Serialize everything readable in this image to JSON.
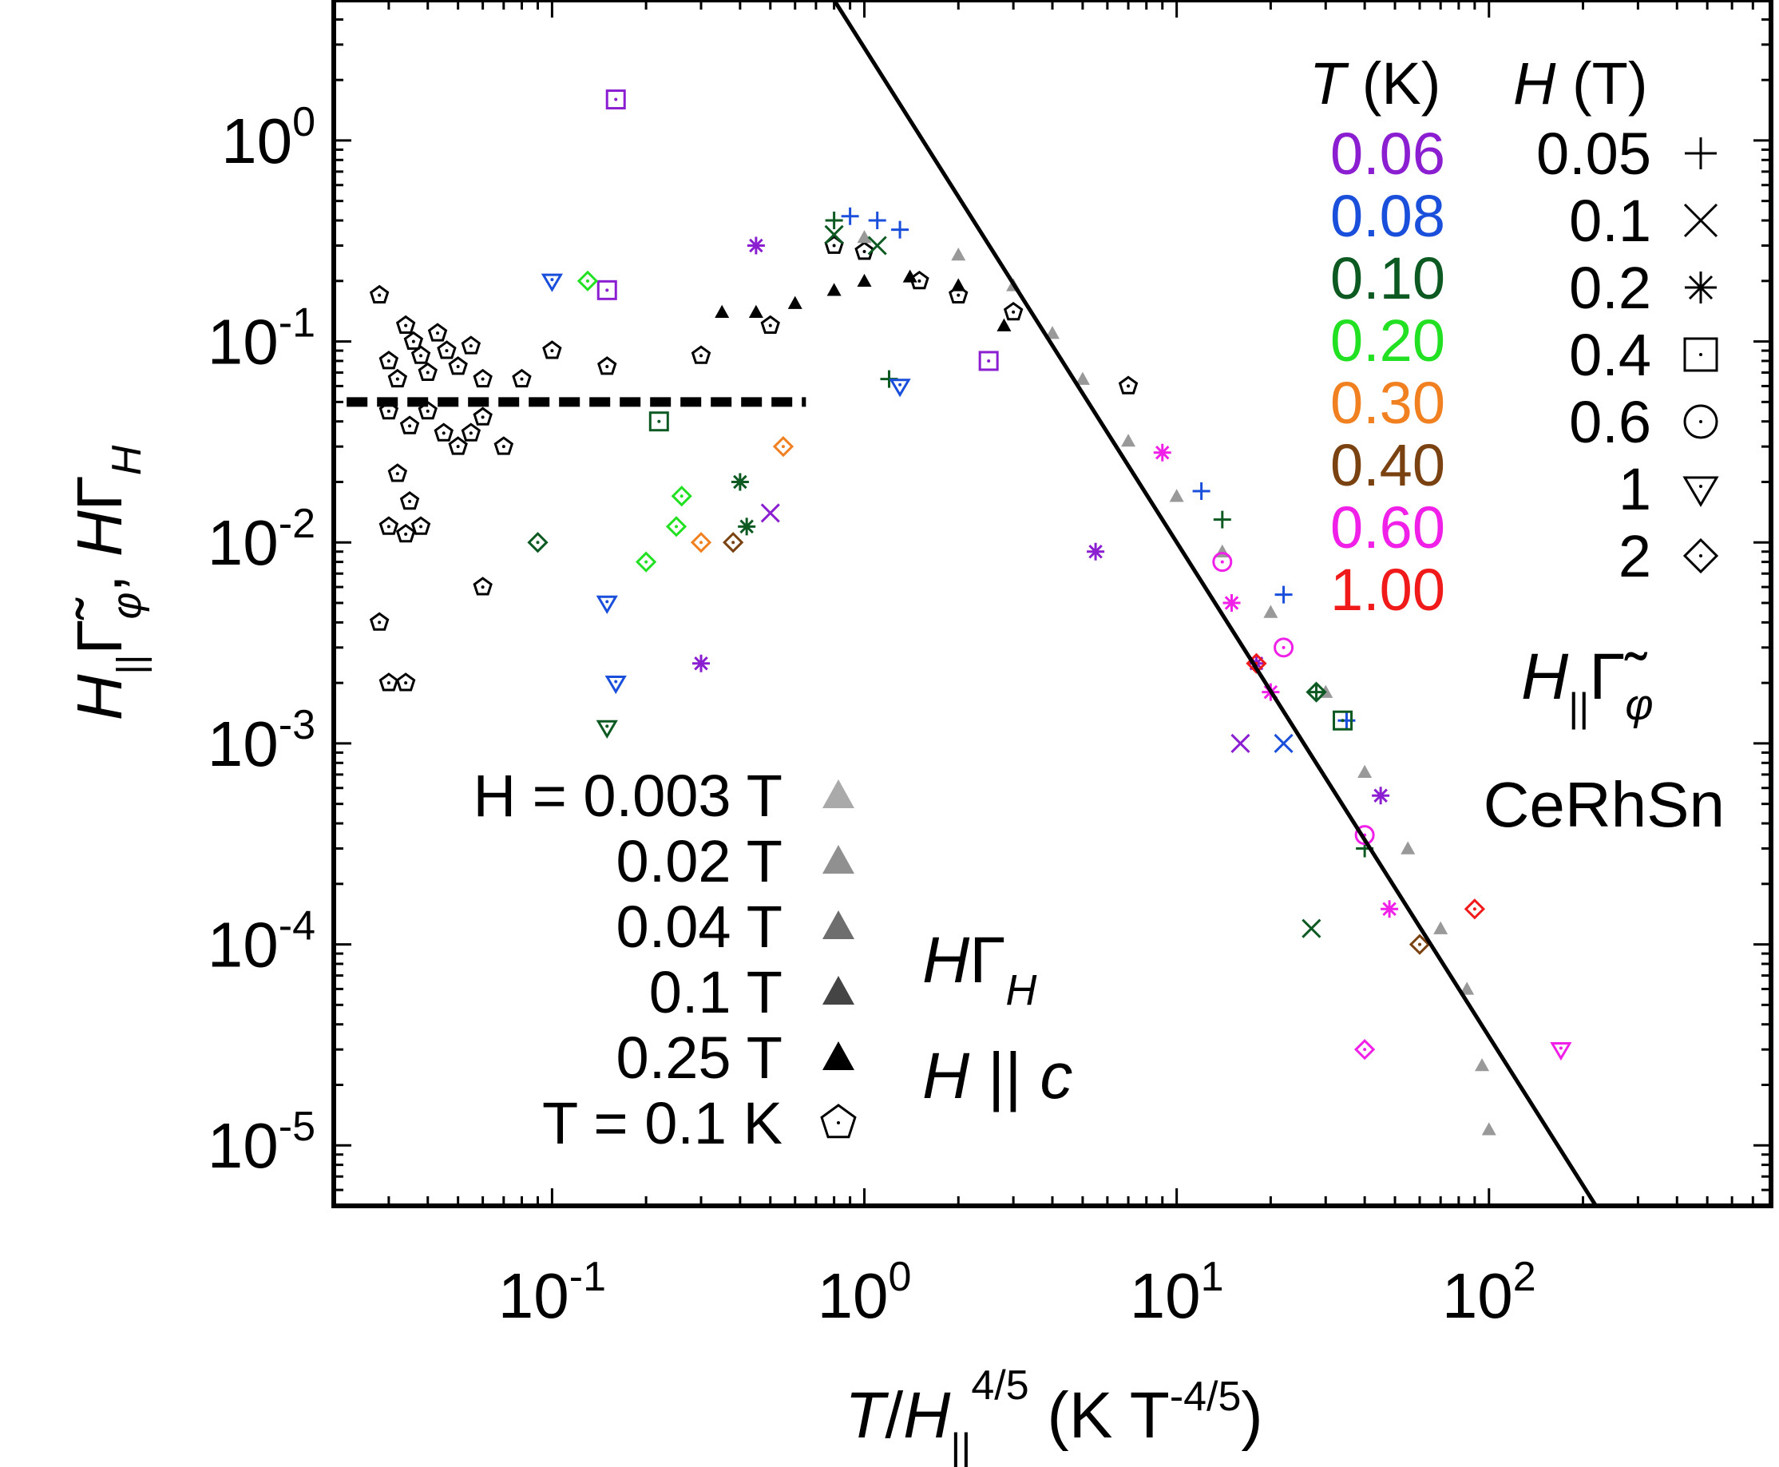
{
  "chart_data": {
    "type": "scatter",
    "x_scale": "log",
    "y_scale": "log",
    "xlim": [
      0.02,
      800
    ],
    "ylim": [
      5e-06,
      5
    ],
    "grid": false,
    "x_ticks": [
      {
        "value": 0.1,
        "base": "10",
        "exp": "-1"
      },
      {
        "value": 1,
        "base": "10",
        "exp": "0"
      },
      {
        "value": 10,
        "base": "10",
        "exp": "1"
      },
      {
        "value": 100,
        "base": "10",
        "exp": "2"
      }
    ],
    "y_ticks": [
      {
        "value": 1,
        "base": "10",
        "exp": "0"
      },
      {
        "value": 0.1,
        "base": "10",
        "exp": "-1"
      },
      {
        "value": 0.01,
        "base": "10",
        "exp": "-2"
      },
      {
        "value": 0.001,
        "base": "10",
        "exp": "-3"
      },
      {
        "value": 0.0001,
        "base": "10",
        "exp": "-4"
      },
      {
        "value": 1e-05,
        "base": "10",
        "exp": "-5"
      }
    ],
    "xlabel": "T/H||^4/5 (K T^-4/5)",
    "ylabel": "H|| Γ̃φ , HΓH",
    "annotations": {
      "material": "CeRhSn",
      "gamma_phi_label": "H||Γ̃φ",
      "gamma_h_label": "HΓH",
      "field_direction": "H || c"
    },
    "legend_T": {
      "header": "T (K)",
      "entries": [
        {
          "label": "0.06",
          "color": "#8a1ed0"
        },
        {
          "label": "0.08",
          "color": "#1a4fdc"
        },
        {
          "label": "0.10",
          "color": "#0c5a22"
        },
        {
          "label": "0.20",
          "color": "#22e022"
        },
        {
          "label": "0.30",
          "color": "#f08020"
        },
        {
          "label": "0.40",
          "color": "#7a4210"
        },
        {
          "label": "0.60",
          "color": "#f020e8"
        },
        {
          "label": "1.00",
          "color": "#f01a1a"
        }
      ]
    },
    "legend_H": {
      "header": "H (T)",
      "entries": [
        {
          "label": "0.05",
          "marker": "plus"
        },
        {
          "label": "0.1",
          "marker": "cross"
        },
        {
          "label": "0.2",
          "marker": "asterisk"
        },
        {
          "label": "0.4",
          "marker": "square"
        },
        {
          "label": "0.6",
          "marker": "circle"
        },
        {
          "label": "1",
          "marker": "triangle-down"
        },
        {
          "label": "2",
          "marker": "diamond"
        }
      ]
    },
    "legend_gammaH": {
      "entries": [
        {
          "label": "H = 0.003 T",
          "marker": "triangle-filled",
          "color": "#aaaaaa"
        },
        {
          "label": "0.02 T",
          "marker": "triangle-filled",
          "color": "#909090"
        },
        {
          "label": "0.04 T",
          "marker": "triangle-filled",
          "color": "#6e6e6e"
        },
        {
          "label": "0.1 T",
          "marker": "triangle-filled",
          "color": "#444444"
        },
        {
          "label": "0.25 T",
          "marker": "triangle-filled",
          "color": "#000000"
        },
        {
          "label": "T = 0.1 K",
          "marker": "pentagon",
          "color": "#000000"
        }
      ]
    },
    "reference_lines": [
      {
        "name": "power-law",
        "style": "solid",
        "points": [
          [
            0.8,
            5
          ],
          [
            220,
            5e-06
          ]
        ]
      },
      {
        "name": "plateau",
        "style": "dashed",
        "y": 0.05,
        "x_range": [
          0.022,
          0.65
        ]
      }
    ],
    "series": [
      {
        "marker": "pentagon",
        "color": "#000000",
        "points": [
          [
            0.028,
            0.17
          ],
          [
            0.03,
            0.08
          ],
          [
            0.032,
            0.065
          ],
          [
            0.034,
            0.12
          ],
          [
            0.036,
            0.1
          ],
          [
            0.038,
            0.085
          ],
          [
            0.04,
            0.07
          ],
          [
            0.043,
            0.11
          ],
          [
            0.046,
            0.09
          ],
          [
            0.05,
            0.075
          ],
          [
            0.055,
            0.095
          ],
          [
            0.06,
            0.065
          ],
          [
            0.03,
            0.045
          ],
          [
            0.035,
            0.038
          ],
          [
            0.04,
            0.045
          ],
          [
            0.045,
            0.035
          ],
          [
            0.05,
            0.03
          ],
          [
            0.055,
            0.035
          ],
          [
            0.06,
            0.042
          ],
          [
            0.032,
            0.022
          ],
          [
            0.035,
            0.016
          ],
          [
            0.03,
            0.012
          ],
          [
            0.034,
            0.011
          ],
          [
            0.038,
            0.012
          ],
          [
            0.06,
            0.006
          ],
          [
            0.028,
            0.004
          ],
          [
            0.03,
            0.002
          ],
          [
            0.034,
            0.002
          ],
          [
            0.07,
            0.03
          ],
          [
            0.08,
            0.065
          ],
          [
            0.1,
            0.09
          ],
          [
            0.15,
            0.075
          ],
          [
            0.3,
            0.085
          ],
          [
            0.5,
            0.12
          ],
          [
            0.8,
            0.3
          ],
          [
            1.0,
            0.28
          ],
          [
            1.5,
            0.2
          ],
          [
            2.0,
            0.17
          ],
          [
            3.0,
            0.14
          ],
          [
            7.0,
            0.06
          ]
        ]
      },
      {
        "marker": "triangle-filled",
        "color": "#999999",
        "points": [
          [
            1,
            0.33
          ],
          [
            2,
            0.27
          ],
          [
            3,
            0.19
          ],
          [
            4,
            0.11
          ],
          [
            5,
            0.065
          ],
          [
            7,
            0.032
          ],
          [
            10,
            0.017
          ],
          [
            14,
            0.009
          ],
          [
            20,
            0.0045
          ],
          [
            30,
            0.0018
          ],
          [
            40,
            0.00072
          ],
          [
            55,
            0.0003
          ],
          [
            70,
            0.00012
          ],
          [
            85,
            6e-05
          ],
          [
            95,
            2.5e-05
          ],
          [
            100,
            1.2e-05
          ]
        ]
      },
      {
        "marker": "triangle-filled",
        "color": "#000000",
        "points": [
          [
            0.35,
            0.14
          ],
          [
            0.45,
            0.14
          ],
          [
            0.6,
            0.155
          ],
          [
            0.8,
            0.18
          ],
          [
            1.0,
            0.2
          ],
          [
            1.4,
            0.21
          ],
          [
            2.0,
            0.19
          ],
          [
            2.8,
            0.12
          ]
        ]
      },
      {
        "marker": "plus",
        "color": "#1a4fdc",
        "points": [
          [
            0.9,
            0.42
          ],
          [
            1.1,
            0.4
          ],
          [
            1.3,
            0.36
          ],
          [
            12,
            0.018
          ],
          [
            22,
            0.0055
          ],
          [
            35,
            0.0013
          ]
        ]
      },
      {
        "marker": "plus",
        "color": "#0c5a22",
        "points": [
          [
            0.8,
            0.4
          ],
          [
            1.2,
            0.065
          ],
          [
            14,
            0.013
          ],
          [
            28,
            0.0018
          ],
          [
            40,
            0.0003
          ]
        ]
      },
      {
        "marker": "cross",
        "color": "#0c5a22",
        "points": [
          [
            0.8,
            0.34
          ],
          [
            1.1,
            0.3
          ],
          [
            27,
            0.00012
          ]
        ]
      },
      {
        "marker": "cross",
        "color": "#1a4fdc",
        "points": [
          [
            22,
            0.001
          ]
        ]
      },
      {
        "marker": "cross",
        "color": "#8a1ed0",
        "points": [
          [
            0.5,
            0.014
          ],
          [
            16,
            0.001
          ]
        ]
      },
      {
        "marker": "asterisk",
        "color": "#8a1ed0",
        "points": [
          [
            0.45,
            0.3
          ],
          [
            5.5,
            0.009
          ],
          [
            18,
            0.0025
          ],
          [
            0.3,
            0.0025
          ],
          [
            45,
            0.00055
          ]
        ]
      },
      {
        "marker": "asterisk",
        "color": "#f020e8",
        "points": [
          [
            9,
            0.028
          ],
          [
            15,
            0.005
          ],
          [
            20,
            0.0018
          ],
          [
            48,
            0.00015
          ]
        ]
      },
      {
        "marker": "asterisk",
        "color": "#0c5a22",
        "points": [
          [
            0.4,
            0.02
          ],
          [
            0.42,
            0.012
          ]
        ]
      },
      {
        "marker": "square",
        "color": "#8a1ed0",
        "points": [
          [
            0.16,
            1.6
          ],
          [
            0.15,
            0.18
          ],
          [
            2.5,
            0.08
          ]
        ]
      },
      {
        "marker": "square",
        "color": "#0c5a22",
        "points": [
          [
            34,
            0.0013
          ],
          [
            0.22,
            0.04
          ]
        ]
      },
      {
        "marker": "circle",
        "color": "#f020e8",
        "points": [
          [
            14,
            0.008
          ],
          [
            22,
            0.003
          ],
          [
            40,
            0.00035
          ]
        ]
      },
      {
        "marker": "triangle-down",
        "color": "#1a4fdc",
        "points": [
          [
            0.1,
            0.2
          ],
          [
            0.15,
            0.005
          ],
          [
            0.16,
            0.002
          ],
          [
            1.3,
            0.06
          ]
        ]
      },
      {
        "marker": "triangle-down",
        "color": "#0c5a22",
        "points": [
          [
            0.15,
            0.0012
          ]
        ]
      },
      {
        "marker": "triangle-down",
        "color": "#f020e8",
        "points": [
          [
            170,
            3e-05
          ]
        ]
      },
      {
        "marker": "diamond",
        "color": "#22e022",
        "points": [
          [
            0.13,
            0.2
          ],
          [
            0.2,
            0.008
          ],
          [
            0.25,
            0.012
          ],
          [
            0.26,
            0.017
          ]
        ]
      },
      {
        "marker": "diamond",
        "color": "#f08020",
        "points": [
          [
            0.3,
            0.01
          ],
          [
            0.55,
            0.03
          ]
        ]
      },
      {
        "marker": "diamond",
        "color": "#7a4210",
        "points": [
          [
            0.38,
            0.01
          ],
          [
            60,
            0.0001
          ]
        ]
      },
      {
        "marker": "diamond",
        "color": "#f01a1a",
        "points": [
          [
            90,
            0.00015
          ],
          [
            18,
            0.0025
          ]
        ]
      },
      {
        "marker": "diamond",
        "color": "#f020e8",
        "points": [
          [
            40,
            3e-05
          ]
        ]
      },
      {
        "marker": "diamond",
        "color": "#0c5a22",
        "points": [
          [
            0.09,
            0.01
          ],
          [
            28,
            0.0018
          ]
        ]
      }
    ]
  }
}
